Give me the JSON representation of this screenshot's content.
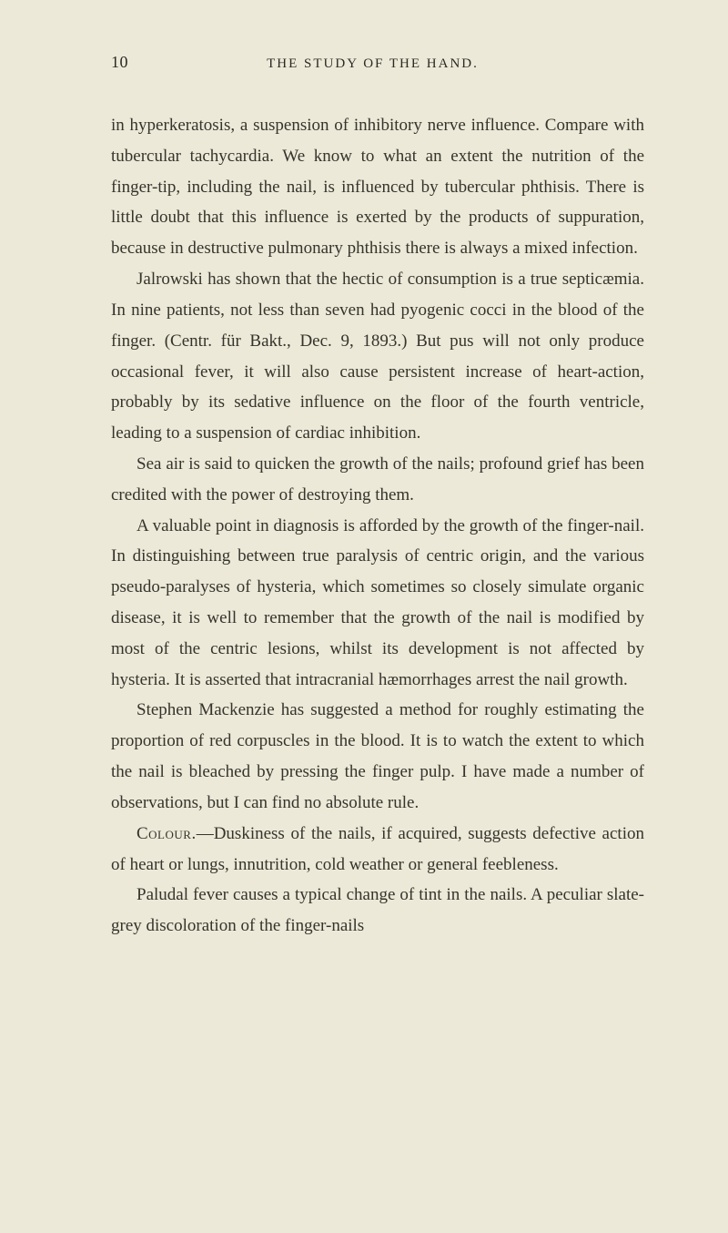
{
  "page_number": "10",
  "header_title": "THE STUDY OF THE HAND.",
  "paragraphs": {
    "p1": "in hyperkeratosis, a suspension of inhibitory nerve influence. Compare with tubercular tachycardia. We know to what an extent the nutrition of the finger-tip, including the nail, is influenced by tubercular phthisis. There is little doubt that this influence is exerted by the products of suppuration, because in destructive pulmonary phthisis there is always a mixed infection.",
    "p2": "Jalrowski has shown that the hectic of consumption is a true septicæmia. In nine patients, not less than seven had pyogenic cocci in the blood of the finger. (Centr. für Bakt., Dec. 9, 1893.) But pus will not only produce occasional fever, it will also cause persistent increase of heart-action, probably by its sedative influence on the floor of the fourth ventricle, leading to a suspension of cardiac inhibition.",
    "p3": "Sea air is said to quicken the growth of the nails; profound grief has been credited with the power of destroying them.",
    "p4": "A valuable point in diagnosis is afforded by the growth of the finger-nail. In distinguishing between true paralysis of centric origin, and the various pseudo-paralyses of hysteria, which sometimes so closely simulate organic disease, it is well to remember that the growth of the nail is modified by most of the centric lesions, whilst its development is not affected by hysteria. It is asserted that intracranial hæmorrhages arrest the nail growth.",
    "p5": "Stephen Mackenzie has suggested a method for roughly estimating the proportion of red corpuscles in the blood. It is to watch the extent to which the nail is bleached by pressing the finger pulp. I have made a number of observations, but I can find no absolute rule.",
    "p6_label": "Colour.",
    "p6_text": "—Duskiness of the nails, if acquired, suggests defective action of heart or lungs, innutrition, cold weather or general feebleness.",
    "p7": "Paludal fever causes a typical change of tint in the nails. A peculiar slate-grey discoloration of the finger-nails"
  },
  "colors": {
    "background": "#ede9d8",
    "text": "#35342c"
  },
  "typography": {
    "body_fontsize": 19,
    "header_fontsize": 15,
    "pagenum_fontsize": 18,
    "line_height": 1.78
  }
}
